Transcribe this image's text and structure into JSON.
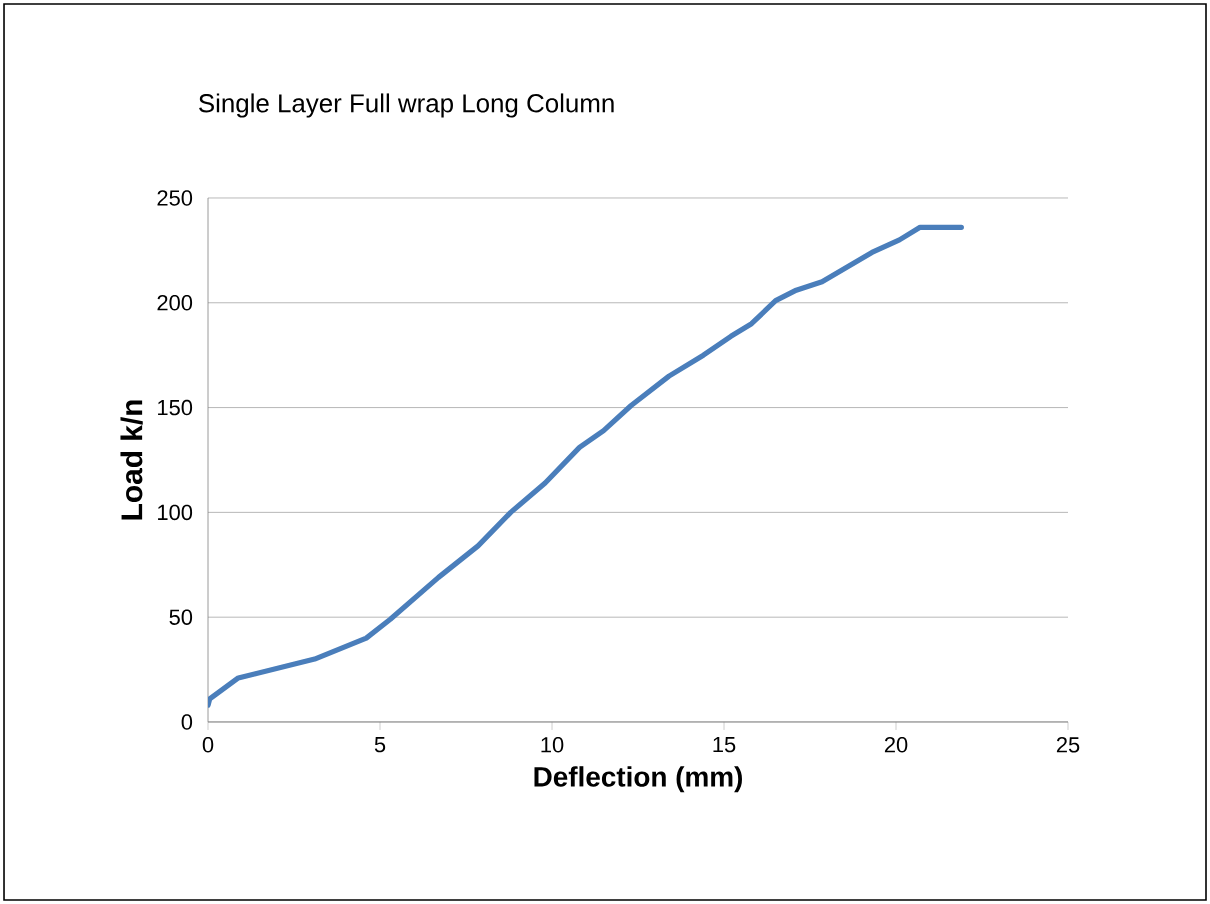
{
  "chart_data": {
    "type": "line",
    "title": "Single Layer Full wrap Long Column",
    "xlabel": "Deflection (mm)",
    "ylabel": "Load k/n",
    "x": [
      0,
      0.05,
      0.88,
      3.1,
      4.6,
      5.3,
      6.7,
      7.85,
      8.8,
      9.8,
      10.8,
      11.5,
      12.3,
      13.4,
      14.4,
      15.2,
      15.8,
      16.5,
      17.1,
      17.85,
      19.3,
      20.1,
      20.7,
      21.9
    ],
    "series": [
      {
        "color": "#4a7ebb",
        "values": [
          8,
          11,
          21,
          30,
          40,
          49,
          69,
          84,
          100,
          114,
          131,
          139,
          151,
          165,
          175,
          184,
          190,
          201,
          206,
          210,
          224,
          230,
          236,
          236
        ]
      }
    ],
    "xlim": [
      0,
      25
    ],
    "ylim": [
      0,
      250
    ],
    "xticks": [
      0,
      5,
      10,
      15,
      20,
      25
    ],
    "yticks": [
      0,
      50,
      100,
      150,
      200,
      250
    ],
    "grid": "y"
  }
}
